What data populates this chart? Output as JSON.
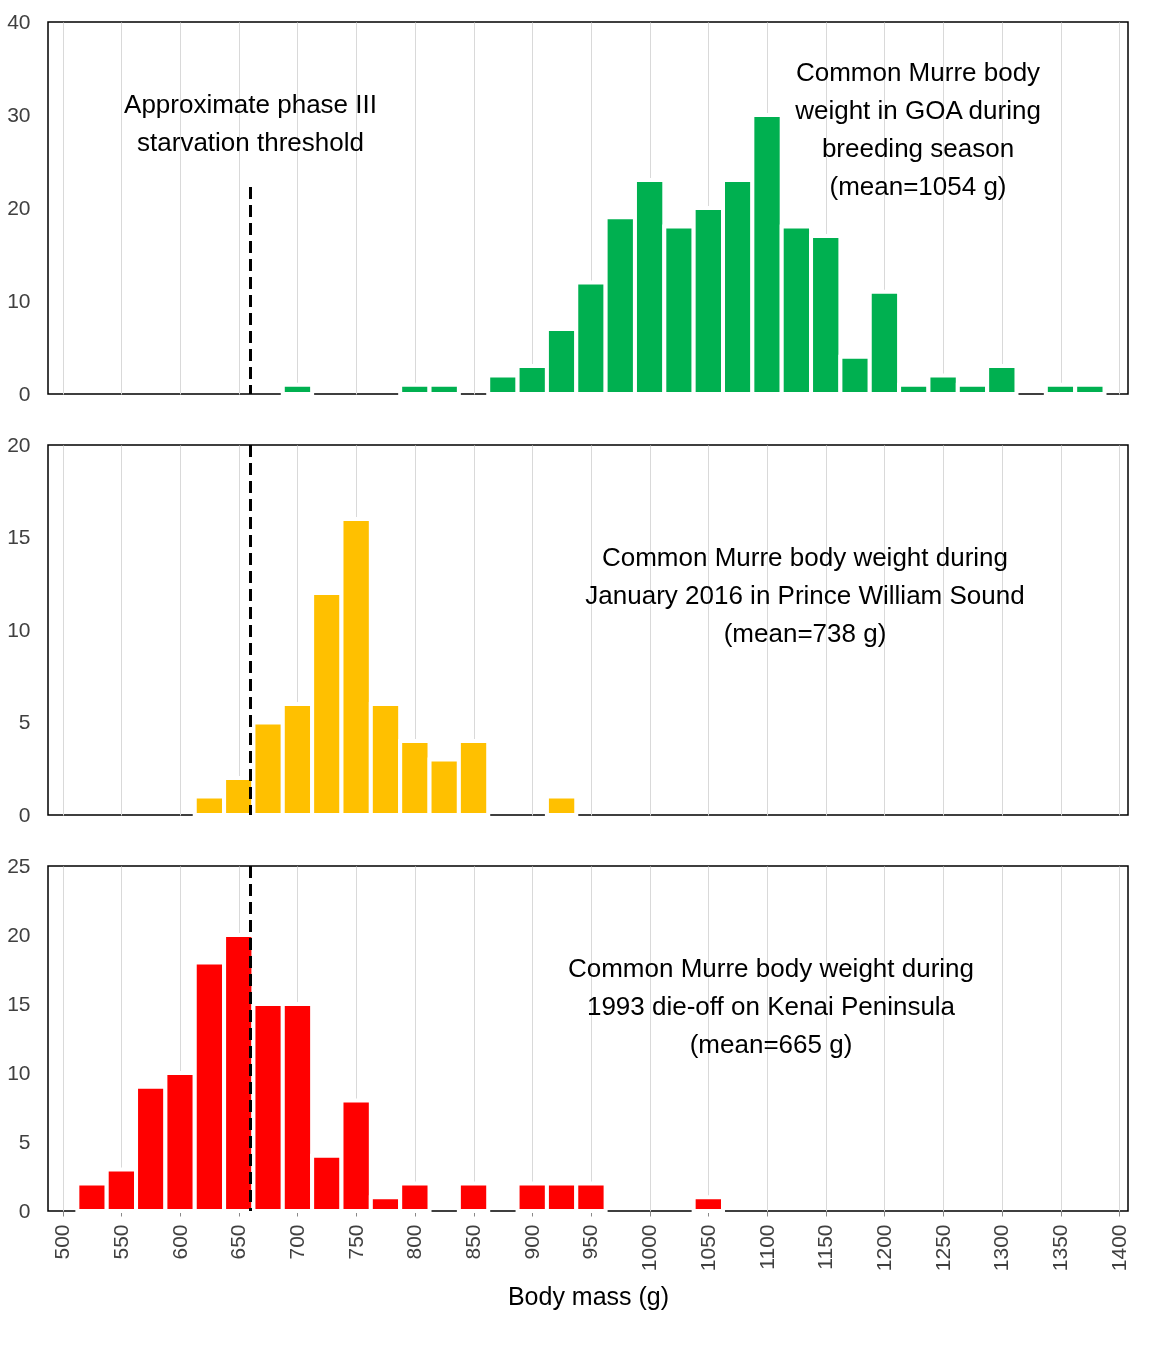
{
  "chart_data": [
    {
      "type": "histogram",
      "bins": [
        512.5,
        537.5,
        562.5,
        587.5,
        612.5,
        637.5,
        662.5,
        687.5,
        712.5,
        737.5,
        762.5,
        787.5,
        812.5,
        837.5,
        862.5,
        887.5,
        912.5,
        937.5,
        962.5,
        987.5,
        1012.5,
        1037.5,
        1062.5,
        1087.5,
        1112.5,
        1137.5,
        1162.5,
        1187.5,
        1212.5,
        1237.5,
        1262.5,
        1287.5,
        1312.5,
        1337.5,
        1362.5,
        1387.5
      ],
      "values": [
        0,
        0,
        0,
        0,
        0,
        0,
        0,
        1,
        0,
        0,
        0,
        1,
        1,
        0,
        2,
        3,
        7,
        12,
        19,
        23,
        18,
        20,
        23,
        30,
        18,
        17,
        4,
        11,
        1,
        2,
        1,
        3,
        0,
        1,
        1
      ],
      "color": "#00b050",
      "xlim": [
        487.5,
        1407.5
      ],
      "xticks": [
        500,
        550,
        600,
        650,
        700,
        750,
        800,
        850,
        900,
        950,
        1000,
        1050,
        1100,
        1150,
        1200,
        1250,
        1300,
        1350,
        1400
      ],
      "ylim": [
        0,
        40
      ],
      "yticks": [
        0,
        10,
        20,
        30,
        40
      ],
      "grid": "x",
      "tick_labels": "y",
      "ref_lines": [
        {
          "axis": "x",
          "value": 660,
          "label": "Approximate phase III\nstarvation threshold",
          "color": "#000000",
          "line_style": "dashed"
        }
      ],
      "annotations": [
        "Common  Murre body\nweight in GOA during\nbreeding  season\n(mean=1054 g)"
      ]
    },
    {
      "type": "histogram",
      "bins": [
        512.5,
        537.5,
        562.5,
        587.5,
        612.5,
        637.5,
        662.5,
        687.5,
        712.5,
        737.5,
        762.5,
        787.5,
        812.5,
        837.5,
        862.5,
        887.5,
        912.5,
        937.5,
        962.5,
        987.5,
        1012.5,
        1037.5,
        1062.5,
        1087.5,
        1112.5,
        1137.5,
        1162.5,
        1187.5,
        1212.5,
        1237.5,
        1262.5,
        1287.5,
        1312.5,
        1337.5,
        1362.5,
        1387.5
      ],
      "values": [
        0,
        0,
        0,
        0,
        1,
        2,
        5,
        6,
        12,
        16,
        6,
        4,
        3,
        4,
        0,
        0,
        1,
        0,
        0,
        0,
        0,
        0,
        0,
        0,
        0,
        0,
        0,
        0,
        0,
        0,
        0,
        0,
        0,
        0,
        0
      ],
      "color": "#ffc000",
      "xlim": [
        487.5,
        1407.5
      ],
      "xticks": [
        500,
        550,
        600,
        650,
        700,
        750,
        800,
        850,
        900,
        950,
        1000,
        1050,
        1100,
        1150,
        1200,
        1250,
        1300,
        1350,
        1400
      ],
      "ylim": [
        0,
        20
      ],
      "yticks": [
        0,
        5,
        10,
        15,
        20
      ],
      "grid": "x",
      "tick_labels": "y",
      "ref_lines": [
        {
          "axis": "x",
          "value": 660,
          "color": "#000000",
          "line_style": "dashed"
        }
      ],
      "annotations": [
        "Common  Murre body weight  during\nJanuary  2016 in Prince William  Sound\n(mean=738 g)"
      ]
    },
    {
      "type": "histogram",
      "bins": [
        512.5,
        537.5,
        562.5,
        587.5,
        612.5,
        637.5,
        662.5,
        687.5,
        712.5,
        737.5,
        762.5,
        787.5,
        812.5,
        837.5,
        862.5,
        887.5,
        912.5,
        937.5,
        962.5,
        987.5,
        1012.5,
        1037.5,
        1062.5,
        1087.5,
        1112.5,
        1137.5,
        1162.5,
        1187.5,
        1212.5,
        1237.5,
        1262.5,
        1287.5,
        1312.5,
        1337.5,
        1362.5,
        1387.5
      ],
      "values": [
        2,
        3,
        9,
        10,
        18,
        20,
        15,
        15,
        4,
        8,
        1,
        2,
        0,
        2,
        0,
        2,
        2,
        2,
        0,
        0,
        0,
        1,
        0,
        0,
        0,
        0,
        0,
        0,
        0,
        0,
        0,
        0,
        0,
        0,
        0
      ],
      "color": "#ff0000",
      "xlim": [
        487.5,
        1407.5
      ],
      "xticks": [
        500,
        550,
        600,
        650,
        700,
        750,
        800,
        850,
        900,
        950,
        1000,
        1050,
        1100,
        1150,
        1200,
        1250,
        1300,
        1350,
        1400
      ],
      "ylim": [
        0,
        25
      ],
      "yticks": [
        0,
        5,
        10,
        15,
        20,
        25
      ],
      "grid": "x",
      "xlabel": "Body mass (g)",
      "ref_lines": [
        {
          "axis": "x",
          "value": 660,
          "color": "#000000",
          "line_style": "dashed"
        }
      ],
      "annotations": [
        "Common  Murre body weight  during\n1993 die-off on Kenai Peninsula\n(mean=665 g)"
      ]
    }
  ]
}
